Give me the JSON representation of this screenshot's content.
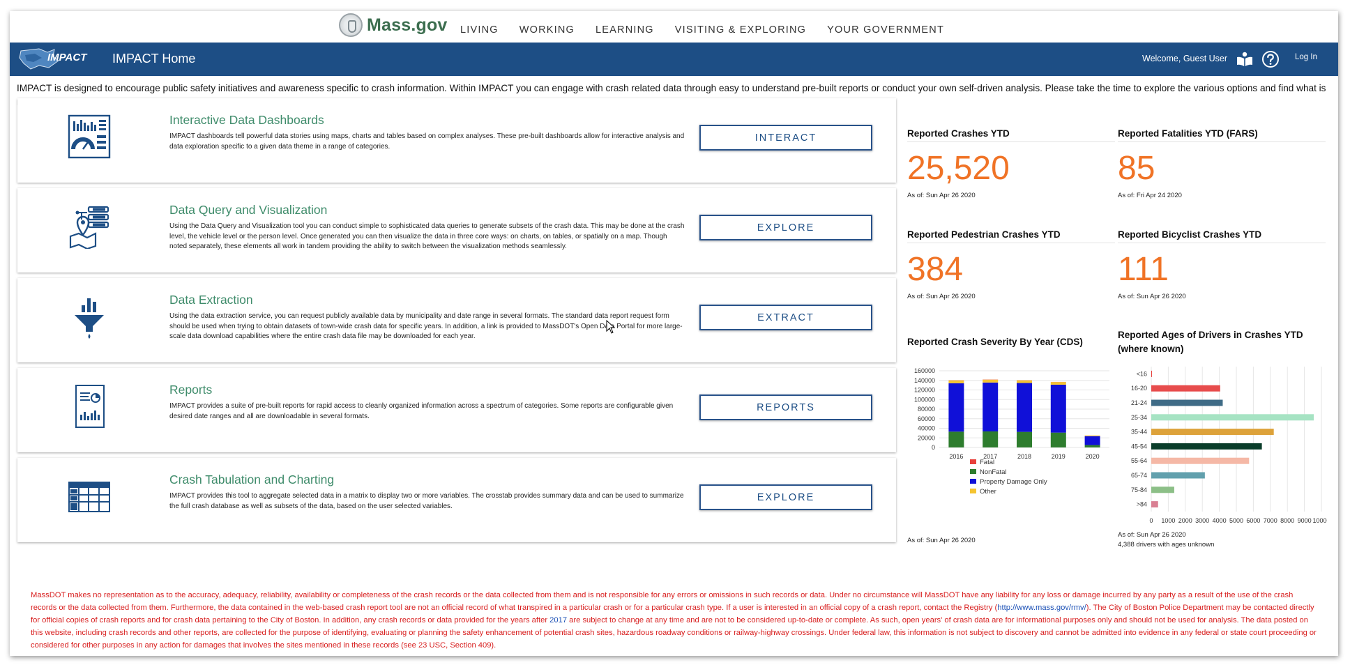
{
  "massgov": {
    "wordmark": "Mass.gov",
    "nav": [
      "LIVING",
      "WORKING",
      "LEARNING",
      "VISITING & EXPLORING",
      "YOUR GOVERNMENT"
    ]
  },
  "header": {
    "brand": "IMPACT",
    "title": "IMPACT Home",
    "welcome": "Welcome, Guest User",
    "login": "Log In"
  },
  "intro": "IMPACT is designed to encourage public safety initiatives and awareness specific to crash information. Within IMPACT you can engage with crash related data through easy to understand pre-built reports or conduct your own self-driven analysis. Please take the time to explore the various options and find what is right for you.",
  "cards": [
    {
      "title": "Interactive Data Dashboards",
      "desc": "IMPACT dashboards tell powerful data stories using maps, charts and tables based on complex analyses. These pre-built dashboards allow for interactive analysis and data exploration specific to a given data theme in a range of categories.",
      "button": "INTERACT",
      "icon": "dashboard-icon"
    },
    {
      "title": "Data Query and Visualization",
      "desc": "Using the Data Query and Visualization tool you can conduct simple to sophisticated data queries to generate subsets of the crash data. This may be done at the crash level, the vehicle level or the person level. Once generated you can then visualize the data in three core ways: on charts, on tables, or spatially on a map. Though noted separately, these elements all work in tandem providing the ability to switch between the visualization methods seamlessly.",
      "button": "EXPLORE",
      "icon": "query-map-icon"
    },
    {
      "title": "Data Extraction",
      "desc": "Using the data extraction service, you can request publicly available data by municipality and date range in several formats. The standard data report request form should be used when trying to obtain datasets of town-wide crash data for specific years. In addition, a link is provided to MassDOT's Open Data Portal for more large-scale data download capabilities where the entire crash data file may be downloaded for each year.",
      "button": "EXTRACT",
      "icon": "funnel-icon"
    },
    {
      "title": "Reports",
      "desc": "IMPACT provides a suite of pre-built reports for rapid access to cleanly organized information across a spectrum of categories. Some reports are configurable given desired date ranges and all are downloadable in several formats.",
      "button": "REPORTS",
      "icon": "report-icon"
    },
    {
      "title": "Crash Tabulation and Charting",
      "desc": "IMPACT provides this tool to aggregate selected data in a matrix to display two or more variables. The crosstab provides summary data and can be used to summarize the full crash database as well as subsets of the data, based on the user selected variables.",
      "button": "EXPLORE",
      "icon": "table-grid-icon"
    }
  ],
  "stats": [
    {
      "label": "Reported Crashes YTD",
      "value": "25,520",
      "asof": "As of: Sun Apr 26 2020"
    },
    {
      "label": "Reported Fatalities YTD (FARS)",
      "value": "85",
      "asof": "As of: Fri Apr 24 2020"
    },
    {
      "label": "Reported Pedestrian Crashes YTD",
      "value": "384",
      "asof": "As of: Sun Apr 26 2020"
    },
    {
      "label": "Reported Bicyclist Crashes YTD",
      "value": "111",
      "asof": "As of: Sun Apr 26 2020"
    }
  ],
  "severity_chart": {
    "title": "Reported Crash Severity By Year (CDS)",
    "asof": "As of: Sun Apr 26 2020"
  },
  "ages_chart": {
    "title_line1": "Reported Ages of Drivers in Crashes YTD",
    "title_line2": "(where known)",
    "asof": "As of: Sun Apr 26 2020",
    "note": "4,388 drivers with ages unknown"
  },
  "chart_data": [
    {
      "type": "bar",
      "stacked": true,
      "title": "Reported Crash Severity By Year (CDS)",
      "categories": [
        "2016",
        "2017",
        "2018",
        "2019",
        "2020"
      ],
      "series": [
        {
          "name": "Fatal",
          "color": "#e8413c",
          "values": [
            350,
            350,
            350,
            330,
            80
          ]
        },
        {
          "name": "NonFatal",
          "color": "#2e7d2e",
          "values": [
            33000,
            33500,
            32500,
            31000,
            5000
          ]
        },
        {
          "name": "Property Damage Only",
          "color": "#1010d8",
          "values": [
            101000,
            102000,
            102000,
            100000,
            18500
          ]
        },
        {
          "name": "Other",
          "color": "#f5c431",
          "values": [
            6000,
            6000,
            5500,
            5500,
            1500
          ]
        }
      ],
      "yticks": [
        0,
        20000,
        40000,
        60000,
        80000,
        100000,
        120000,
        140000,
        160000
      ],
      "ylim": [
        0,
        160000
      ],
      "legend": "bottom",
      "grid": true
    },
    {
      "type": "bar",
      "orientation": "horizontal",
      "title": "Reported Ages of Drivers in Crashes YTD (where known)",
      "categories": [
        "<16",
        "16-20",
        "21-24",
        "25-34",
        "35-44",
        "45-54",
        "55-64",
        "65-74",
        "75-84",
        ">84"
      ],
      "values": [
        30,
        4050,
        4200,
        9550,
        7200,
        6500,
        5750,
        3150,
        1350,
        400
      ],
      "colors": [
        "#e8413c",
        "#e74c4c",
        "#3f6b86",
        "#a6e3c3",
        "#dda23a",
        "#0a3d2a",
        "#f5b8a6",
        "#62a0ad",
        "#8cbf87",
        "#d98093"
      ],
      "xticks": [
        0,
        1000,
        2000,
        3000,
        4000,
        5000,
        6000,
        7000,
        8000,
        9000,
        10000
      ],
      "xlim": [
        0,
        10000
      ],
      "grid": true
    }
  ],
  "disclaimer": {
    "part1": "MassDOT makes no representation as to the accuracy, adequacy, reliability, availability or completeness of the crash records or the data collected from them and is not responsible for any errors or omissions in such records or data. Under no circumstance will MassDOT have any liability for any loss or damage incurred by any party as a result of the use of the crash records or the data collected from them. Furthermore, the data contained in the web-based crash report tool are not an official record of what transpired in a particular crash or for a particular crash type. If a user is interested in an official copy of a crash report, contact the Registry (",
    "link": "http://www.mass.gov/rmv/",
    "part2": "). The City of Boston Police Department may be contacted directly for official copies of crash reports and for crash data pertaining to the City of Boston. In addition, any crash records or data provided for the years after ",
    "year": "2017",
    "part3": " are subject to change at any time and are not to be considered up-to-date or complete. As such, open years' of crash data are for informational purposes only and should not be used for analysis. The data posted on this website, including crash records and other reports, are collected for the purpose of identifying, evaluating or planning the safety enhancement of potential crash sites, hazardous roadway conditions or railway-highway crossings. Under federal law, this information is not subject to discovery and cannot be admitted into evidence in any federal or state court proceeding or considered for other purposes in any action for damages that involves the sites mentioned in these records (see 23 USC, Section 409)."
  }
}
